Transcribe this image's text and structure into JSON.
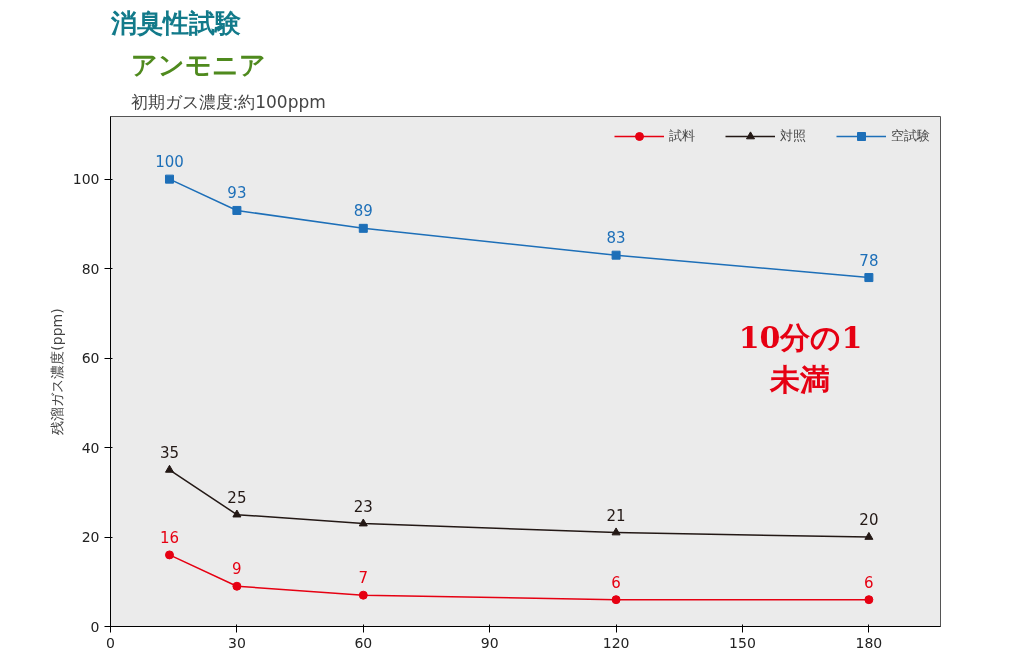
{
  "chart_data": {
    "type": "line",
    "title": "消臭性試験",
    "subtitle": "アンモニア",
    "annotations": [
      "初期ガス濃度:約100ppm",
      "10分の1\n未満"
    ],
    "ylabel": "残溜ガス濃度(ppm)",
    "x": [
      14,
      30,
      60,
      120,
      180
    ],
    "series": [
      {
        "name": "試料",
        "color": "#e60012",
        "values": [
          16,
          9,
          7,
          6,
          6
        ],
        "marker": "circle"
      },
      {
        "name": "対照",
        "color": "#231815",
        "values": [
          35,
          25,
          23,
          21,
          20
        ],
        "marker": "triangle"
      },
      {
        "name": "空試験",
        "color": "#1d6fb8",
        "values": [
          100,
          93,
          89,
          83,
          78
        ],
        "marker": "square"
      }
    ],
    "xlim": [
      0,
      197
    ],
    "ylim": [
      0,
      114
    ],
    "xticks": [
      0,
      30,
      60,
      90,
      120,
      150,
      180
    ],
    "yticks": [
      0,
      20,
      40,
      60,
      80,
      100
    ],
    "data_labels": true,
    "legend": "top right",
    "grid": false,
    "line_style": "solid"
  }
}
